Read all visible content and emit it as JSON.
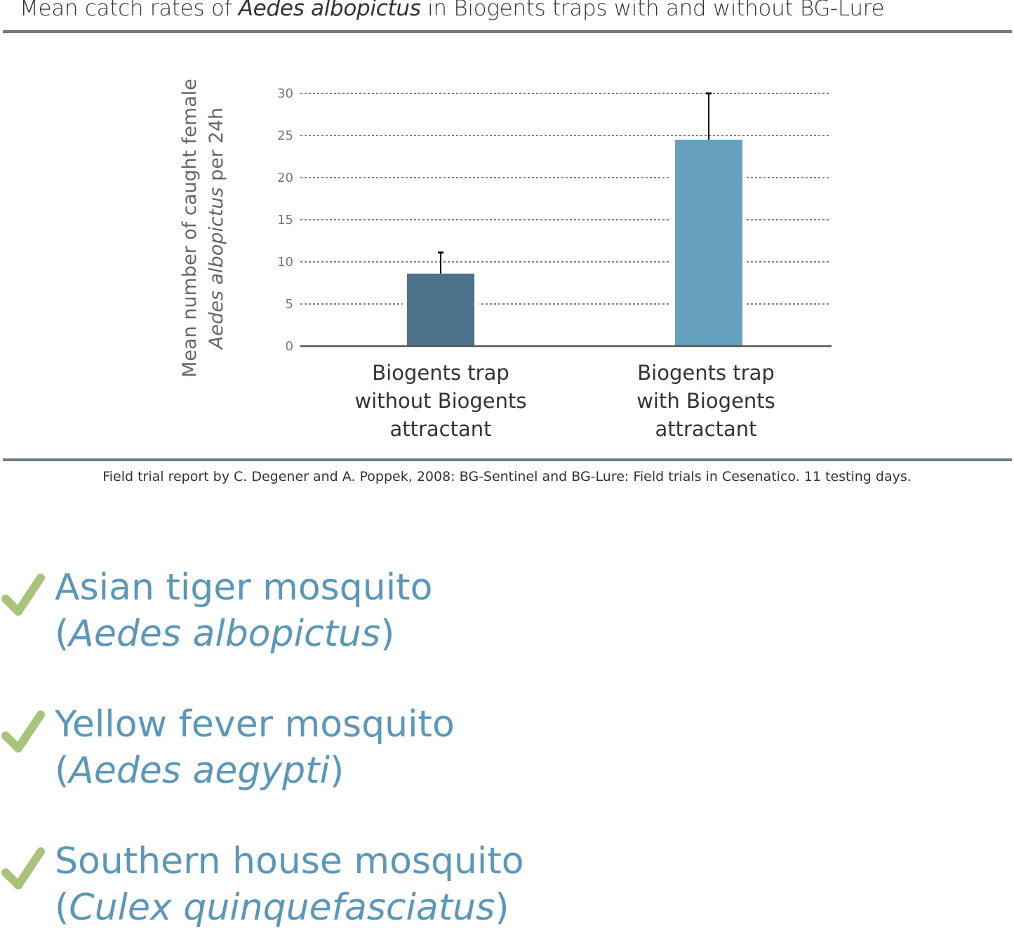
{
  "title": {
    "pre": "Mean catch rates of ",
    "italic": "Aedes albopictus",
    "post": " in Biogents traps with and without BG-Lure"
  },
  "chart_data": {
    "type": "bar",
    "categories": [
      "Biogents trap\nwithout Biogents\nattractant",
      "Biogents trap\nwith Biogents\nattractant"
    ],
    "values": [
      8.6,
      24.5
    ],
    "error_upper": [
      11.1,
      30
    ],
    "colors": [
      "#4e7289",
      "#65a0bd"
    ],
    "ylabel_line1": "Mean number of caught female",
    "ylabel_line2_italic": "Aedes albopictus",
    "ylabel_line2_rest": " per 24h",
    "yticks": [
      0,
      5,
      10,
      15,
      20,
      25,
      30
    ],
    "ylim": [
      0,
      30
    ],
    "grid": true
  },
  "footnote": "Field trial report by C. Degener and A. Poppek, 2008: BG-Sentinel and BG-Lure: Field trials in Cesenatico. 11 testing days.",
  "species": [
    {
      "common": "Asian tiger mosquito",
      "open": "(",
      "latin": "Aedes albopictus",
      "close": ")",
      "icon": "check-icon"
    },
    {
      "common": "Yellow fever mosquito",
      "open": "(",
      "latin": "Aedes aegypti",
      "close": ")",
      "icon": "check-icon"
    },
    {
      "common": "Southern house mosquito",
      "open": "(",
      "latin": "Culex quinquefasciatus",
      "close": ")",
      "icon": "check-icon"
    }
  ],
  "colors": {
    "accent_text": "#5b97b8",
    "check": "#a8c47a",
    "rule": "#6b7a86"
  }
}
